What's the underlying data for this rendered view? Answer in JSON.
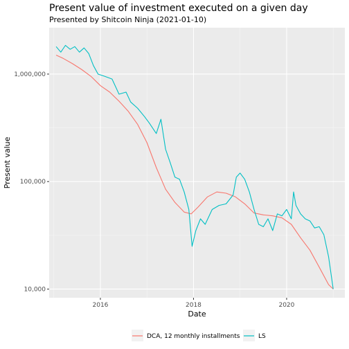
{
  "chart_data": {
    "type": "line",
    "title": "Present value of investment executed on a given day",
    "subtitle": "Presented by Shitcoin Ninja (2021-01-10)",
    "xlabel": "Date",
    "ylabel": "Present value",
    "y_scale": "log10",
    "xlim": [
      2014.9,
      2021.25
    ],
    "ylim": [
      8300,
      2700000
    ],
    "x_ticks": [
      2016,
      2018,
      2020
    ],
    "x_tick_labels": [
      "2016",
      "2018",
      "2020"
    ],
    "y_ticks": [
      10000,
      100000,
      1000000
    ],
    "y_tick_labels": [
      "10,000",
      "100,000",
      "1,000,000"
    ],
    "grid": true,
    "legend_position": "bottom",
    "series": [
      {
        "name": "DCA, 12 monthly installments",
        "color": "#F8766D",
        "x": [
          2015.05,
          2015.2,
          2015.4,
          2015.6,
          2015.8,
          2016.0,
          2016.2,
          2016.4,
          2016.6,
          2016.8,
          2017.0,
          2017.2,
          2017.4,
          2017.6,
          2017.8,
          2017.95,
          2018.1,
          2018.3,
          2018.5,
          2018.7,
          2018.9,
          2019.1,
          2019.3,
          2019.5,
          2019.7,
          2019.9,
          2020.1,
          2020.3,
          2020.5,
          2020.7,
          2020.9,
          2021.0
        ],
        "y": [
          1500000,
          1400000,
          1250000,
          1100000,
          950000,
          780000,
          680000,
          560000,
          450000,
          340000,
          230000,
          135000,
          85000,
          64000,
          52000,
          50000,
          58000,
          72000,
          80000,
          78000,
          72000,
          62000,
          51000,
          49000,
          48000,
          46000,
          40000,
          30000,
          23000,
          16000,
          11000,
          10000
        ]
      },
      {
        "name": "LS",
        "color": "#00BFC4",
        "x": [
          2015.05,
          2015.15,
          2015.25,
          2015.35,
          2015.45,
          2015.55,
          2015.65,
          2015.75,
          2015.85,
          2015.95,
          2016.1,
          2016.25,
          2016.4,
          2016.55,
          2016.65,
          2016.8,
          2016.95,
          2017.05,
          2017.2,
          2017.3,
          2017.4,
          2017.5,
          2017.6,
          2017.7,
          2017.8,
          2017.9,
          2017.97,
          2018.05,
          2018.15,
          2018.25,
          2018.4,
          2018.55,
          2018.7,
          2018.85,
          2018.92,
          2019.0,
          2019.1,
          2019.2,
          2019.3,
          2019.4,
          2019.5,
          2019.6,
          2019.7,
          2019.8,
          2019.9,
          2020.0,
          2020.1,
          2020.15,
          2020.2,
          2020.3,
          2020.4,
          2020.5,
          2020.6,
          2020.7,
          2020.8,
          2020.9,
          2021.0
        ],
        "y": [
          1800000,
          1600000,
          1850000,
          1700000,
          1800000,
          1600000,
          1750000,
          1550000,
          1200000,
          1000000,
          950000,
          900000,
          650000,
          680000,
          550000,
          480000,
          400000,
          350000,
          280000,
          380000,
          200000,
          150000,
          110000,
          105000,
          80000,
          55000,
          25000,
          35000,
          45000,
          40000,
          55000,
          60000,
          62000,
          75000,
          110000,
          120000,
          105000,
          80000,
          55000,
          40000,
          38000,
          45000,
          35000,
          50000,
          48000,
          55000,
          45000,
          80000,
          60000,
          50000,
          45000,
          43000,
          37000,
          38000,
          32000,
          20000,
          10000
        ]
      }
    ]
  }
}
